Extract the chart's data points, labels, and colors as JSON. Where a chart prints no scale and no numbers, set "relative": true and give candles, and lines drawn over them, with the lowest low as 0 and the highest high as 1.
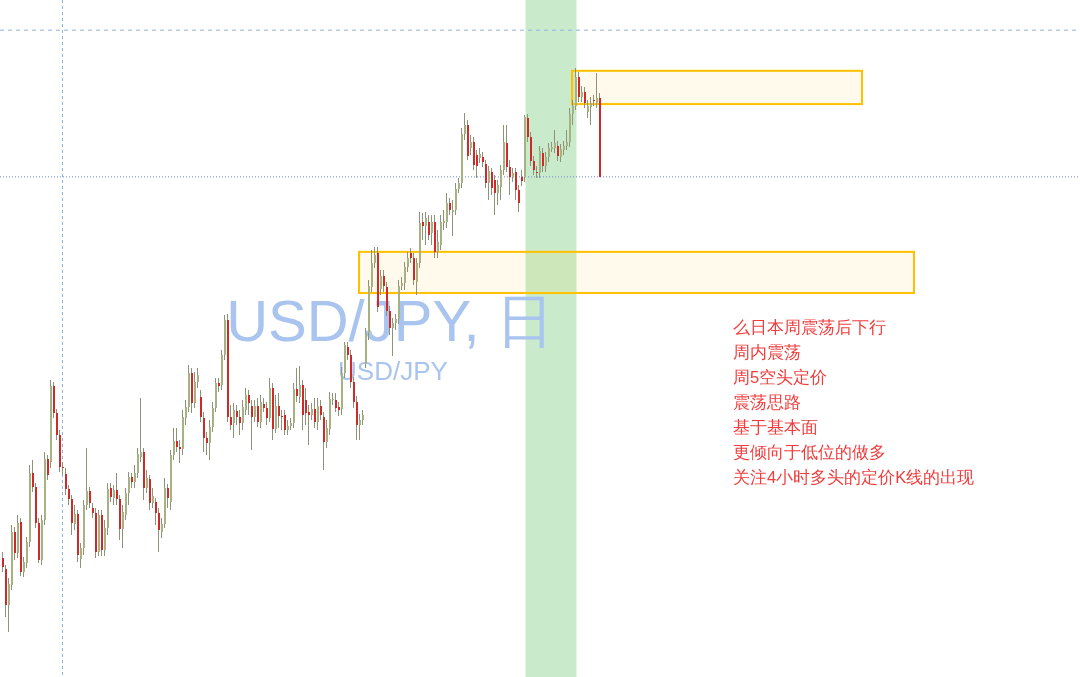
{
  "chart_data": {
    "type": "candlestick",
    "relative": true,
    "title": "USD/JPY, 日",
    "subtitle": "USD/JPY",
    "annotations": [
      "么日本周震荡后下行",
      "周内震荡",
      "周5空头定价",
      "震荡思路",
      "基于基本面",
      "更倾向于低位的做多",
      "关注4小时多头的定价K线的出现"
    ],
    "ref_lines": [
      {
        "axis": "y",
        "value": 1.067,
        "color": "#8fb4e0",
        "line_style": "dashed"
      },
      {
        "axis": "y",
        "value": 0.807,
        "color": "#6f86d6",
        "line_style": "dotted"
      }
    ],
    "bands": [
      {
        "axis": "y",
        "from": 0.601,
        "to": 0.674,
        "color": "#ffc000"
      },
      {
        "axis": "y",
        "from": 0.936,
        "to": 0.995,
        "color": "#ffc000"
      }
    ],
    "categories": [
      null,
      null,
      null,
      null,
      null,
      null,
      null,
      null,
      null,
      null,
      null,
      null,
      null,
      null,
      null,
      null,
      null,
      null,
      null,
      null,
      null,
      null,
      null,
      null,
      null,
      null,
      null,
      null,
      null,
      null,
      null,
      null,
      null,
      null,
      null,
      null,
      null,
      null,
      null,
      null,
      null,
      null,
      null,
      null,
      null,
      null,
      null,
      null,
      null,
      null,
      null,
      null,
      null,
      null,
      null,
      null,
      null,
      null,
      null,
      null,
      null,
      null,
      null,
      null,
      null,
      null,
      null,
      null,
      null,
      null,
      null,
      null,
      null,
      null,
      null,
      null,
      null,
      null,
      null,
      null,
      null,
      null,
      null,
      null,
      null,
      null,
      null,
      null,
      null,
      null,
      null,
      null,
      null,
      null,
      null,
      null,
      null,
      null,
      null,
      null,
      null,
      null,
      null,
      null,
      null,
      null,
      null,
      null,
      null,
      null,
      null,
      null,
      null,
      null,
      null,
      null,
      null,
      null,
      null,
      null,
      null,
      null,
      null,
      null,
      null,
      null,
      null,
      null,
      null,
      null,
      null,
      null,
      null,
      null,
      null,
      null,
      null,
      null,
      null,
      null,
      null,
      null,
      null,
      null,
      null,
      null,
      null,
      null,
      null,
      null,
      null,
      null,
      null,
      null,
      null,
      null,
      null,
      null,
      null,
      null,
      null,
      null,
      null,
      null,
      null,
      null,
      null,
      null,
      null,
      null,
      null,
      null,
      null,
      null,
      null,
      null,
      null,
      null,
      null,
      null,
      null,
      null,
      null,
      null,
      null,
      null,
      null,
      null,
      null,
      null,
      null,
      null,
      null,
      null,
      null,
      null,
      null,
      null,
      null,
      null
    ],
    "ohlc": [
      [
        0.131,
        0.142,
        0.106,
        0.115
      ],
      [
        0.112,
        0.119,
        0.027,
        0.048
      ],
      [
        0.048,
        0.096,
        0,
        0.085
      ],
      [
        0.083,
        0.19,
        0.074,
        0.177
      ],
      [
        0.177,
        0.186,
        0.128,
        0.14
      ],
      [
        0.14,
        0.207,
        0.131,
        0.193
      ],
      [
        0.195,
        0.202,
        0.099,
        0.106
      ],
      [
        0.106,
        0.133,
        0.098,
        0.124
      ],
      [
        0.122,
        0.168,
        0.113,
        0.16
      ],
      [
        0.16,
        0.296,
        0.151,
        0.282
      ],
      [
        0.282,
        0.305,
        0.248,
        0.257
      ],
      [
        0.257,
        0.264,
        0.184,
        0.193
      ],
      [
        0.193,
        0.202,
        0.122,
        0.128
      ],
      [
        0.128,
        0.207,
        0.119,
        0.199
      ],
      [
        0.199,
        0.319,
        0.19,
        0.307
      ],
      [
        0.307,
        0.314,
        0.27,
        0.278
      ],
      [
        0.301,
        0.447,
        0.291,
        0.436
      ],
      [
        0.436,
        0.443,
        0.379,
        0.388
      ],
      [
        0.388,
        0.395,
        0.34,
        0.349
      ],
      [
        0.349,
        0.358,
        0.284,
        0.293
      ],
      [
        0.293,
        0.301,
        0.278,
        0.291
      ],
      [
        0.28,
        0.291,
        0.243,
        0.254
      ],
      [
        0.254,
        0.261,
        0.225,
        0.236
      ],
      [
        0.236,
        0.243,
        0.172,
        0.193
      ],
      [
        0.191,
        0.225,
        0.181,
        0.209
      ],
      [
        0.209,
        0.216,
        0.124,
        0.137
      ],
      [
        0.129,
        0.158,
        0.113,
        0.149
      ],
      [
        0.149,
        0.234,
        0.137,
        0.225
      ],
      [
        0.225,
        0.326,
        0.216,
        0.25
      ],
      [
        0.25,
        0.257,
        0.22,
        0.229
      ],
      [
        0.22,
        0.229,
        0.202,
        0.211
      ],
      [
        0.211,
        0.22,
        0.131,
        0.142
      ],
      [
        0.142,
        0.216,
        0.135,
        0.207
      ],
      [
        0.207,
        0.216,
        0.135,
        0.145
      ],
      [
        0.145,
        0.199,
        0.135,
        0.184
      ],
      [
        0.184,
        0.264,
        0.172,
        0.254
      ],
      [
        0.255,
        0.264,
        0.23,
        0.239
      ],
      [
        0.238,
        0.261,
        0.225,
        0.252
      ],
      [
        0.252,
        0.282,
        0.225,
        0.236
      ],
      [
        0.236,
        0.243,
        0.163,
        0.183
      ],
      [
        0.183,
        0.225,
        0.149,
        0.213
      ],
      [
        0.207,
        0.255,
        0.199,
        0.246
      ],
      [
        0.246,
        0.284,
        0.225,
        0.275
      ],
      [
        0.275,
        0.282,
        0.255,
        0.266
      ],
      [
        0.266,
        0.296,
        0.255,
        0.282
      ],
      [
        0.282,
        0.326,
        0.273,
        0.316
      ],
      [
        0.31,
        0.415,
        0.301,
        0.319
      ],
      [
        0.319,
        0.326,
        0.234,
        0.255
      ],
      [
        0.255,
        0.287,
        0.246,
        0.273
      ],
      [
        0.271,
        0.278,
        0.216,
        0.229
      ],
      [
        0.229,
        0.255,
        0.22,
        0.241
      ],
      [
        0.23,
        0.238,
        0.19,
        0.211
      ],
      [
        0.211,
        0.22,
        0.142,
        0.181
      ],
      [
        0.177,
        0.202,
        0.167,
        0.191
      ],
      [
        0.191,
        0.273,
        0.184,
        0.255
      ],
      [
        0.255,
        0.262,
        0.22,
        0.238
      ],
      [
        0.23,
        0.323,
        0.216,
        0.314
      ],
      [
        0.314,
        0.362,
        0.305,
        0.339
      ],
      [
        0.339,
        0.362,
        0.319,
        0.328
      ],
      [
        0.328,
        0.34,
        0.3,
        0.324
      ],
      [
        0.324,
        0.394,
        0.314,
        0.381
      ],
      [
        0.379,
        0.411,
        0.367,
        0.399
      ],
      [
        0.399,
        0.473,
        0.39,
        0.459
      ],
      [
        0.459,
        0.468,
        0.388,
        0.406
      ],
      [
        0.406,
        0.461,
        0.397,
        0.443
      ],
      [
        0.443,
        0.468,
        0.433,
        0.456
      ],
      [
        0.417,
        0.429,
        0.372,
        0.381
      ],
      [
        0.379,
        0.39,
        0.319,
        0.344
      ],
      [
        0.344,
        0.355,
        0.314,
        0.335
      ],
      [
        0.335,
        0.376,
        0.305,
        0.363
      ],
      [
        0.363,
        0.408,
        0.355,
        0.397
      ],
      [
        0.397,
        0.45,
        0.39,
        0.441
      ],
      [
        0.441,
        0.45,
        0.426,
        0.436
      ],
      [
        0.438,
        0.5,
        0.429,
        0.491
      ],
      [
        0.491,
        0.562,
        0.482,
        0.553
      ],
      [
        0.553,
        0.564,
        0.372,
        0.381
      ],
      [
        0.381,
        0.402,
        0.358,
        0.367
      ],
      [
        0.371,
        0.406,
        0.344,
        0.394
      ],
      [
        0.392,
        0.402,
        0.367,
        0.381
      ],
      [
        0.381,
        0.394,
        0.349,
        0.371
      ],
      [
        0.371,
        0.411,
        0.358,
        0.399
      ],
      [
        0.394,
        0.433,
        0.385,
        0.42
      ],
      [
        0.42,
        0.429,
        0.385,
        0.406
      ],
      [
        0.401,
        0.411,
        0.323,
        0.381
      ],
      [
        0.381,
        0.411,
        0.372,
        0.401
      ],
      [
        0.401,
        0.415,
        0.363,
        0.372
      ],
      [
        0.372,
        0.42,
        0.362,
        0.408
      ],
      [
        0.404,
        0.415,
        0.39,
        0.397
      ],
      [
        0.397,
        0.408,
        0.367,
        0.379
      ],
      [
        0.379,
        0.45,
        0.372,
        0.433
      ],
      [
        0.433,
        0.441,
        0.34,
        0.36
      ],
      [
        0.36,
        0.42,
        0.353,
        0.401
      ],
      [
        0.401,
        0.424,
        0.362,
        0.383
      ],
      [
        0.383,
        0.394,
        0.358,
        0.381
      ],
      [
        0.385,
        0.394,
        0.349,
        0.358
      ],
      [
        0.358,
        0.376,
        0.349,
        0.365
      ],
      [
        0.365,
        0.379,
        0.358,
        0.371
      ],
      [
        0.371,
        0.441,
        0.362,
        0.431
      ],
      [
        0.431,
        0.468,
        0.408,
        0.418
      ],
      [
        0.417,
        0.472,
        0.406,
        0.438
      ],
      [
        0.438,
        0.447,
        0.358,
        0.385
      ],
      [
        0.411,
        0.433,
        0.367,
        0.388
      ],
      [
        0.39,
        0.402,
        0.332,
        0.385
      ],
      [
        0.385,
        0.406,
        0.376,
        0.395
      ],
      [
        0.395,
        0.415,
        0.362,
        0.372
      ],
      [
        0.372,
        0.415,
        0.358,
        0.401
      ],
      [
        0.401,
        0.411,
        0.376,
        0.385
      ],
      [
        0.381,
        0.39,
        0.287,
        0.337
      ],
      [
        0.337,
        0.376,
        0.326,
        0.362
      ],
      [
        0.36,
        0.426,
        0.349,
        0.413
      ],
      [
        0.411,
        0.424,
        0.402,
        0.413
      ],
      [
        0.411,
        0.424,
        0.39,
        0.397
      ],
      [
        0.399,
        0.408,
        0.383,
        0.394
      ],
      [
        0.395,
        0.47,
        0.385,
        0.459
      ],
      [
        0.459,
        0.514,
        0.45,
        0.509
      ],
      [
        0.505,
        0.514,
        0.482,
        0.491
      ],
      [
        0.491,
        0.5,
        0.433,
        0.443
      ],
      [
        0.443,
        0.452,
        0.397,
        0.408
      ],
      [
        0.408,
        0.418,
        0.34,
        0.367
      ],
      [
        0.367,
        0.387,
        0.34,
        0.376
      ],
      [
        0.376,
        0.394,
        0.367,
        0.385
      ],
      [
        0.475,
        0.539,
        0.468,
        0.53
      ],
      [
        0.53,
        0.624,
        0.518,
        0.613
      ],
      [
        0.612,
        0.677,
        0.603,
        0.654
      ],
      [
        0.654,
        0.683,
        0.645,
        0.668
      ],
      [
        0.672,
        0.683,
        0.567,
        0.576
      ],
      [
        0.608,
        0.642,
        0.598,
        0.631
      ],
      [
        0.631,
        0.642,
        0.603,
        0.613
      ],
      [
        0.612,
        0.621,
        0.56,
        0.569
      ],
      [
        0.569,
        0.578,
        0.527,
        0.539
      ],
      [
        0.539,
        0.557,
        0.489,
        0.548
      ],
      [
        0.548,
        0.564,
        0.535,
        0.555
      ],
      [
        0.555,
        0.624,
        0.546,
        0.613
      ],
      [
        0.613,
        0.629,
        0.606,
        0.619
      ],
      [
        0.619,
        0.656,
        0.606,
        0.647
      ],
      [
        0.647,
        0.674,
        0.638,
        0.663
      ],
      [
        0.672,
        0.681,
        0.654,
        0.663
      ],
      [
        0.663,
        0.672,
        0.615,
        0.624
      ],
      [
        0.621,
        0.663,
        0.598,
        0.654
      ],
      [
        0.654,
        0.745,
        0.645,
        0.725
      ],
      [
        0.727,
        0.743,
        0.695,
        0.72
      ],
      [
        0.72,
        0.745,
        0.686,
        0.734
      ],
      [
        0.727,
        0.739,
        0.695,
        0.704
      ],
      [
        0.707,
        0.739,
        0.686,
        0.727
      ],
      [
        0.727,
        0.739,
        0.663,
        0.674
      ],
      [
        0.674,
        0.713,
        0.663,
        0.691
      ],
      [
        0.686,
        0.739,
        0.677,
        0.727
      ],
      [
        0.725,
        0.748,
        0.713,
        0.729
      ],
      [
        0.727,
        0.778,
        0.716,
        0.761
      ],
      [
        0.761,
        0.77,
        0.739,
        0.748
      ],
      [
        0.745,
        0.766,
        0.702,
        0.748
      ],
      [
        0.748,
        0.796,
        0.739,
        0.785
      ],
      [
        0.785,
        0.805,
        0.778,
        0.796
      ],
      [
        0.796,
        0.894,
        0.787,
        0.883
      ],
      [
        0.883,
        0.92,
        0.872,
        0.899
      ],
      [
        0.899,
        0.908,
        0.837,
        0.844
      ],
      [
        0.858,
        0.881,
        0.846,
        0.869
      ],
      [
        0.869,
        0.878,
        0.819,
        0.828
      ],
      [
        0.846,
        0.855,
        0.805,
        0.826
      ],
      [
        0.84,
        0.858,
        0.832,
        0.848
      ],
      [
        0.842,
        0.851,
        0.824,
        0.833
      ],
      [
        0.83,
        0.837,
        0.787,
        0.796
      ],
      [
        0.796,
        0.826,
        0.766,
        0.817
      ],
      [
        0.816,
        0.823,
        0.775,
        0.787
      ],
      [
        0.801,
        0.81,
        0.739,
        0.778
      ],
      [
        0.778,
        0.801,
        0.757,
        0.793
      ],
      [
        0.789,
        0.828,
        0.766,
        0.819
      ],
      [
        0.819,
        0.899,
        0.81,
        0.869
      ],
      [
        0.867,
        0.899,
        0.816,
        0.824
      ],
      [
        0.824,
        0.837,
        0.775,
        0.807
      ],
      [
        0.807,
        0.823,
        0.798,
        0.814
      ],
      [
        0.816,
        0.823,
        0.766,
        0.784
      ],
      [
        0.784,
        0.793,
        0.745,
        0.761
      ],
      [
        0.807,
        0.819,
        0.791,
        0.8
      ],
      [
        0.807,
        0.917,
        0.798,
        0.913
      ],
      [
        0.911,
        0.918,
        0.869,
        0.878
      ],
      [
        0.878,
        0.887,
        0.826,
        0.835
      ],
      [
        0.835,
        0.844,
        0.81,
        0.819
      ],
      [
        0.816,
        0.826,
        0.805,
        0.814
      ],
      [
        0.814,
        0.862,
        0.805,
        0.853
      ],
      [
        0.849,
        0.858,
        0.816,
        0.826
      ],
      [
        0.826,
        0.851,
        0.816,
        0.842
      ],
      [
        0.842,
        0.867,
        0.833,
        0.858
      ],
      [
        0.856,
        0.869,
        0.851,
        0.86
      ],
      [
        0.858,
        0.89,
        0.849,
        0.867
      ],
      [
        0.862,
        0.871,
        0.835,
        0.844
      ],
      [
        0.842,
        0.865,
        0.833,
        0.856
      ],
      [
        0.855,
        0.871,
        0.846,
        0.862
      ],
      [
        0.862,
        0.89,
        0.855,
        0.869
      ],
      [
        0.869,
        0.929,
        0.86,
        0.918
      ],
      [
        0.918,
        0.943,
        0.899,
        0.933
      ],
      [
        0.933,
        1,
        0.926,
        0.984
      ],
      [
        0.984,
        0.993,
        0.94,
        0.949
      ],
      [
        0.949,
        0.968,
        0.94,
        0.957
      ],
      [
        0.957,
        0.966,
        0.929,
        0.938
      ],
      [
        0.922,
        0.943,
        0.911,
        0.933
      ],
      [
        0.931,
        0.949,
        0.899,
        0.938
      ],
      [
        0.943,
        0.952,
        0.933,
        0.941
      ],
      [
        0.938,
        0.991,
        0.929,
        0.947
      ],
      [
        0.947,
        0.956,
        0.807,
        0.807
      ]
    ],
    "colors": [
      "#cf2a2a",
      "#cf2a2a",
      "#a7b283",
      "#a7b283",
      "#cf2a2a",
      "#a7b283",
      "#cf2a2a",
      "#a7b283",
      "#a7b283",
      "#a7b283",
      "#cf2a2a",
      "#cf2a2a",
      "#cf2a2a",
      "#a7b283",
      "#a7b283",
      "#cf2a2a",
      "#a7b283",
      "#cf2a2a",
      "#cf2a2a",
      "#cf2a2a",
      "#cf2a2a",
      "#cf2a2a",
      "#cf2a2a",
      "#cf2a2a",
      "#a7b283",
      "#cf2a2a",
      "#a7b283",
      "#a7b283",
      "#a7b283",
      "#cf2a2a",
      "#cf2a2a",
      "#cf2a2a",
      "#a7b283",
      "#cf2a2a",
      "#a7b283",
      "#a7b283",
      "#cf2a2a",
      "#a7b283",
      "#cf2a2a",
      "#cf2a2a",
      "#a7b283",
      "#a7b283",
      "#a7b283",
      "#cf2a2a",
      "#a7b283",
      "#a7b283",
      "#a7b283",
      "#cf2a2a",
      "#a7b283",
      "#cf2a2a",
      "#a7b283",
      "#cf2a2a",
      "#cf2a2a",
      "#a7b283",
      "#a7b283",
      "#cf2a2a",
      "#a7b283",
      "#a7b283",
      "#cf2a2a",
      "#cf2a2a",
      "#a7b283",
      "#a7b283",
      "#a7b283",
      "#cf2a2a",
      "#a7b283",
      "#a7b283",
      "#cf2a2a",
      "#cf2a2a",
      "#cf2a2a",
      "#a7b283",
      "#a7b283",
      "#a7b283",
      "#cf2a2a",
      "#a7b283",
      "#a7b283",
      "#cf2a2a",
      "#cf2a2a",
      "#a7b283",
      "#cf2a2a",
      "#cf2a2a",
      "#a7b283",
      "#a7b283",
      "#cf2a2a",
      "#cf2a2a",
      "#a7b283",
      "#cf2a2a",
      "#a7b283",
      "#cf2a2a",
      "#cf2a2a",
      "#a7b283",
      "#cf2a2a",
      "#a7b283",
      "#cf2a2a",
      "#cf2a2a",
      "#cf2a2a",
      "#a7b283",
      "#a7b283",
      "#a7b283",
      "#cf2a2a",
      "#a7b283",
      "#cf2a2a",
      "#cf2a2a",
      "#cf2a2a",
      "#a7b283",
      "#cf2a2a",
      "#a7b283",
      "#cf2a2a",
      "#cf2a2a",
      "#a7b283",
      "#a7b283",
      "#a7b283",
      "#cf2a2a",
      "#cf2a2a",
      "#a7b283",
      "#a7b283",
      "#cf2a2a",
      "#cf2a2a",
      "#cf2a2a",
      "#cf2a2a",
      "#a7b283",
      "#a7b283",
      "#a7b283",
      "#a7b283",
      "#a7b283",
      "#a7b283",
      "#cf2a2a",
      "#a7b283",
      "#cf2a2a",
      "#cf2a2a",
      "#cf2a2a",
      "#a7b283",
      "#a7b283",
      "#a7b283",
      "#a7b283",
      "#a7b283",
      "#a7b283",
      "#cf2a2a",
      "#cf2a2a",
      "#a7b283",
      "#a7b283",
      "#cf2a2a",
      "#a7b283",
      "#cf2a2a",
      "#a7b283",
      "#cf2a2a",
      "#a7b283",
      "#a7b283",
      "#a7b283",
      "#a7b283",
      "#cf2a2a",
      "#a7b283",
      "#a7b283",
      "#a7b283",
      "#a7b283",
      "#a7b283",
      "#cf2a2a",
      "#a7b283",
      "#cf2a2a",
      "#cf2a2a",
      "#a7b283",
      "#cf2a2a",
      "#cf2a2a",
      "#a7b283",
      "#cf2a2a",
      "#cf2a2a",
      "#a7b283",
      "#a7b283",
      "#a7b283",
      "#cf2a2a",
      "#cf2a2a",
      "#a7b283",
      "#cf2a2a",
      "#cf2a2a",
      "#cf2a2a",
      "#a7b283",
      "#cf2a2a",
      "#cf2a2a",
      "#cf2a2a",
      "#cf2a2a",
      "#a7b283",
      "#cf2a2a",
      "#a7b283",
      "#a7b283",
      "#a7b283",
      "#a7b283",
      "#cf2a2a",
      "#a7b283",
      "#a7b283",
      "#a7b283",
      "#a7b283",
      "#a7b283",
      "#a7b283",
      "#cf2a2a",
      "#a7b283",
      "#cf2a2a",
      "#a7b283",
      "#a7b283",
      "#cf2a2a",
      "#a7b283",
      "#cf2a2a"
    ]
  }
}
